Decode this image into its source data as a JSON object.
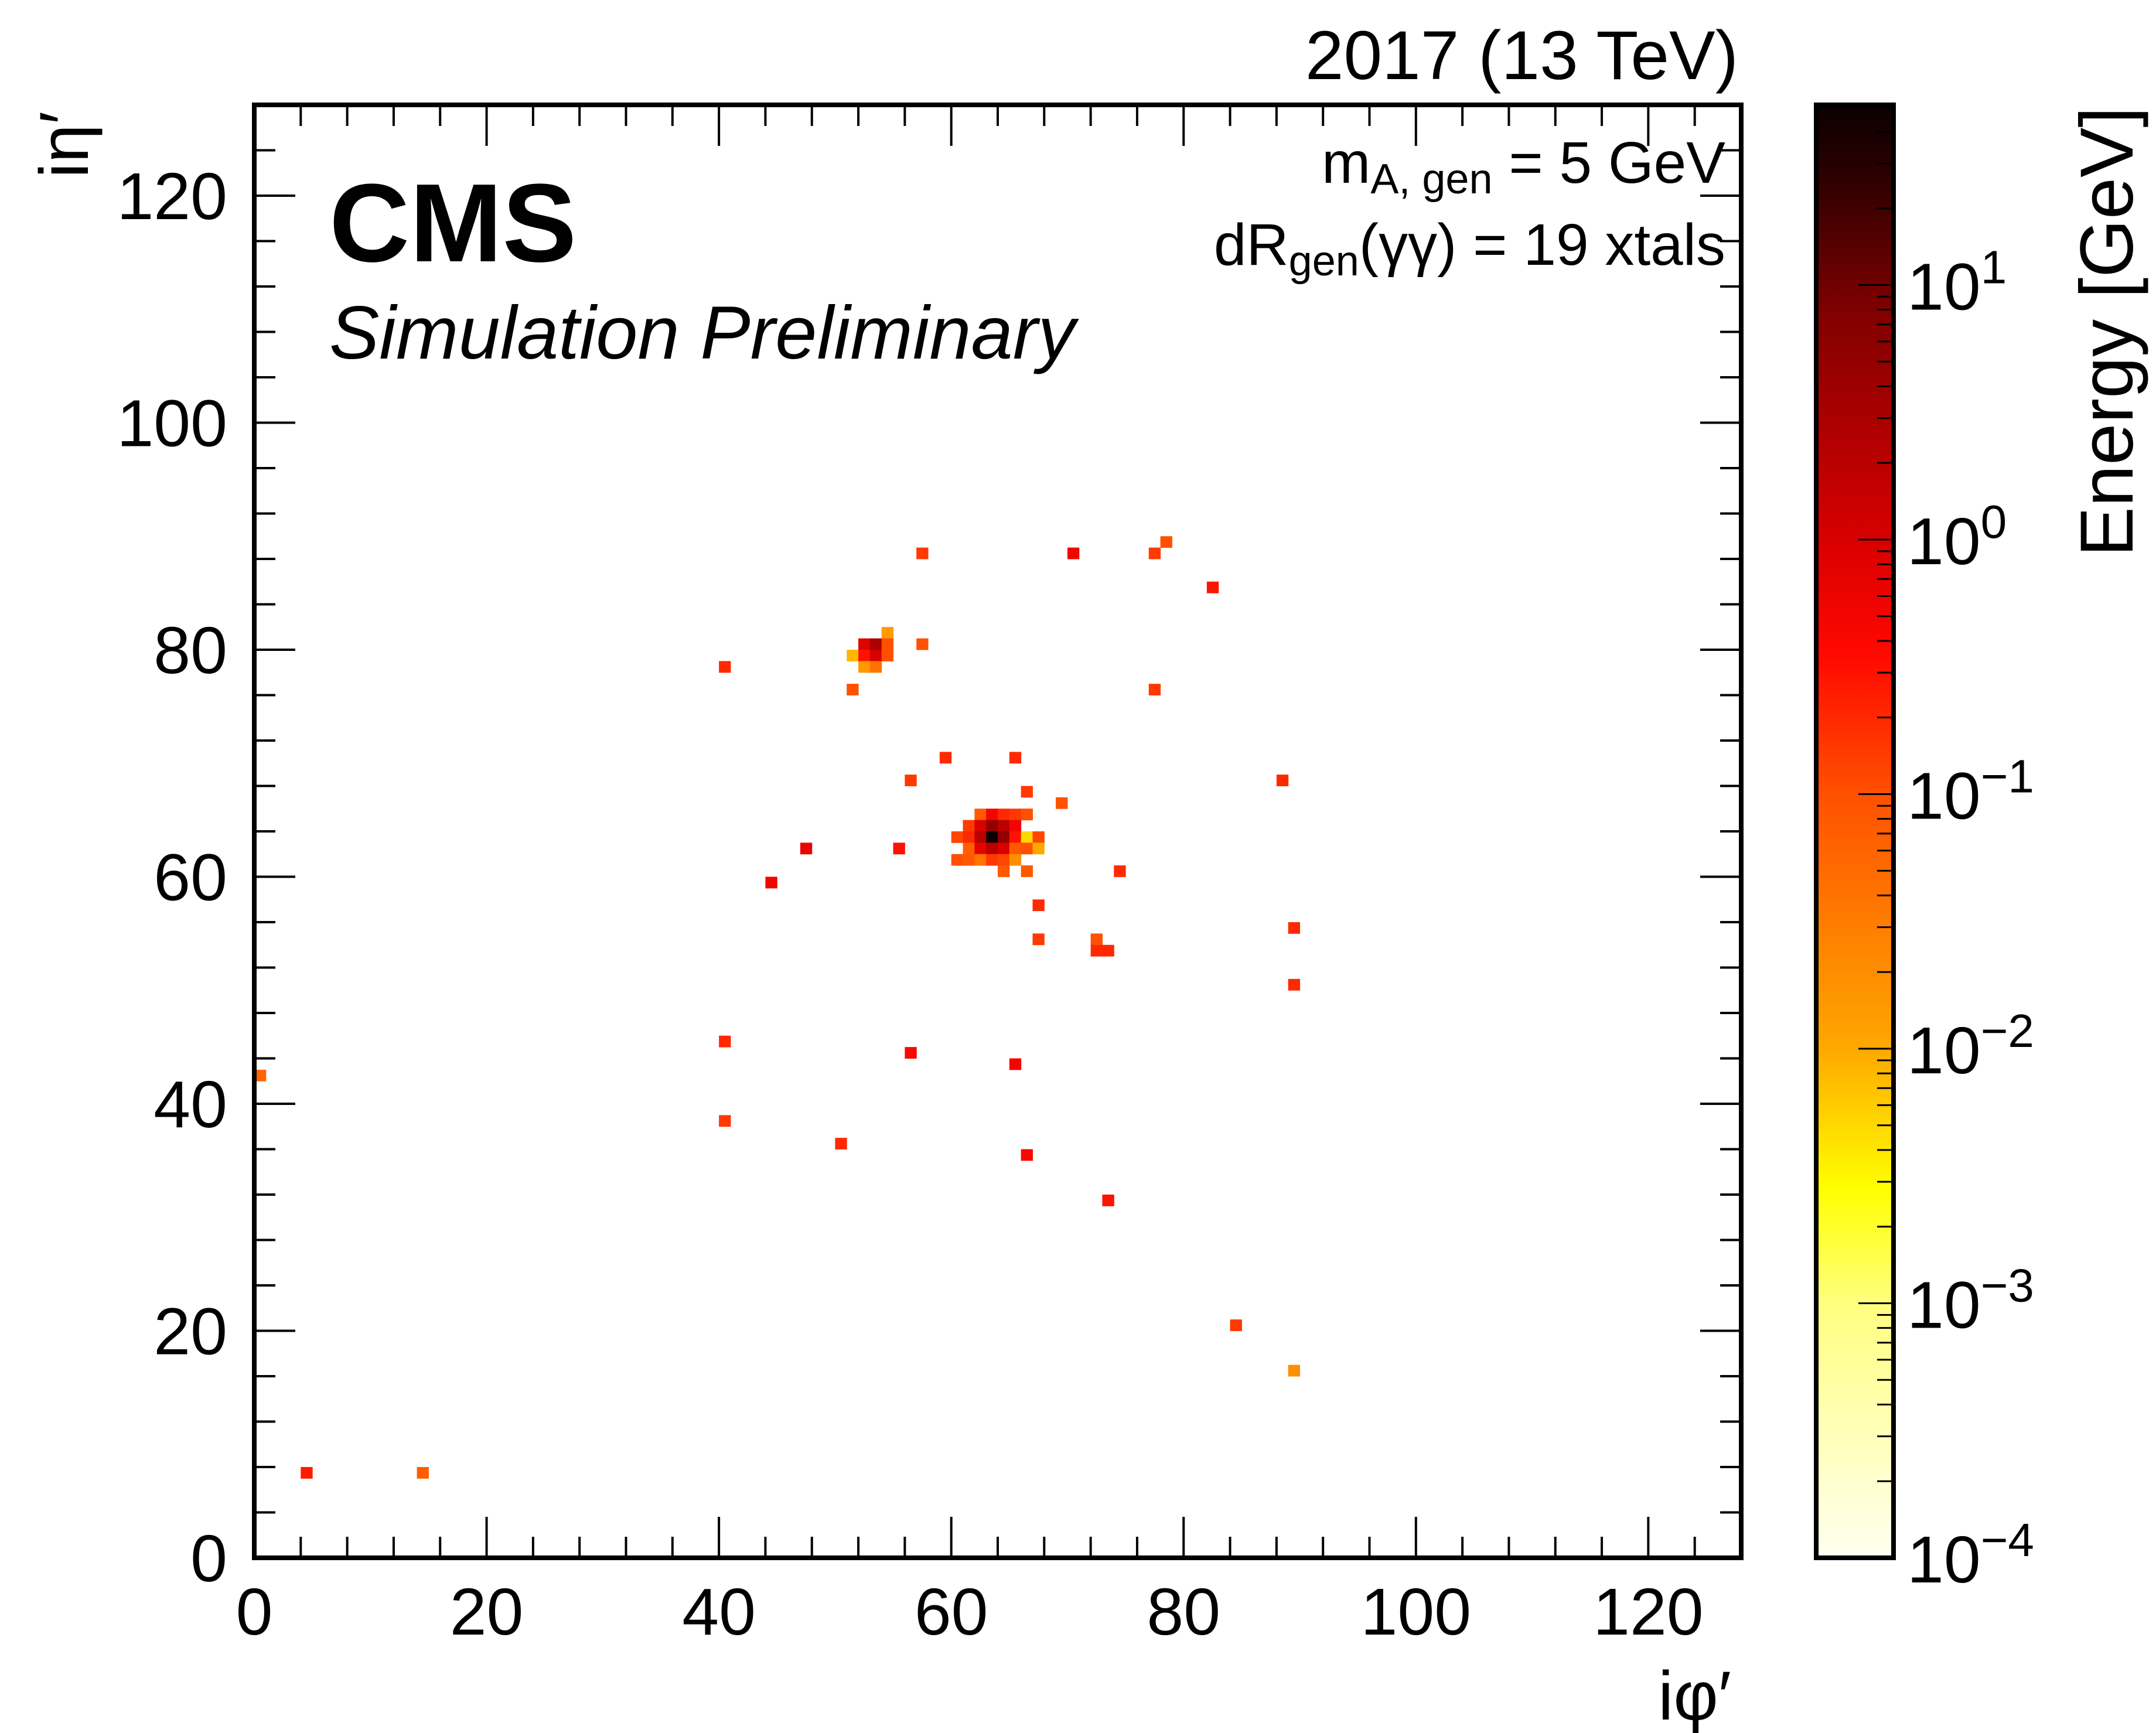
{
  "chart_data": {
    "type": "heatmap",
    "header_right": "2017 (13 TeV)",
    "experiment": "CMS",
    "subtitle": "Simulation Preliminary",
    "annotation_line1": "m_A,gen = 5 GeV",
    "annotation_line1_parts": {
      "base": "m",
      "sub": "A, gen",
      "rest": " = 5 GeV"
    },
    "annotation_line2": "dR_gen(γγ) = 19 xtals",
    "annotation_line2_parts": {
      "base": "dR",
      "sub": "gen",
      "rest": "(γγ) = 19 xtals"
    },
    "xlabel": "iφ′",
    "ylabel": "iη′",
    "zlabel": "Energy [GeV]",
    "xlim": [
      0,
      128
    ],
    "ylim": [
      0,
      128
    ],
    "zlim": [
      0.0001,
      51
    ],
    "zscale": "log",
    "xticks": [
      "0",
      "20",
      "40",
      "60",
      "80",
      "100",
      "120"
    ],
    "yticks": [
      "0",
      "20",
      "40",
      "60",
      "80",
      "100",
      "120"
    ],
    "zticks": [
      {
        "base": "10",
        "exp": "−4",
        "value": 0.0001
      },
      {
        "base": "10",
        "exp": "−3",
        "value": 0.001
      },
      {
        "base": "10",
        "exp": "−2",
        "value": 0.01
      },
      {
        "base": "10",
        "exp": "−1",
        "value": 0.1
      },
      {
        "base": "10",
        "exp": "0",
        "value": 1
      },
      {
        "base": "10",
        "exp": "1",
        "value": 10
      }
    ],
    "cells": [
      [
        62,
        65,
        0.08
      ],
      [
        63,
        65,
        0.5
      ],
      [
        64,
        65,
        0.2
      ],
      [
        65,
        65,
        0.15
      ],
      [
        66,
        65,
        0.05
      ],
      [
        61,
        64,
        0.15
      ],
      [
        62,
        64,
        1.0
      ],
      [
        63,
        64,
        5
      ],
      [
        64,
        64,
        2
      ],
      [
        65,
        64,
        0.5
      ],
      [
        60,
        63,
        0.12
      ],
      [
        61,
        63,
        0.2
      ],
      [
        62,
        63,
        2
      ],
      [
        63,
        63,
        45
      ],
      [
        64,
        63,
        5
      ],
      [
        65,
        63,
        0.3
      ],
      [
        66,
        63,
        0.005
      ],
      [
        67,
        63,
        0.12
      ],
      [
        61,
        62,
        0.07
      ],
      [
        62,
        62,
        0.7
      ],
      [
        63,
        62,
        2
      ],
      [
        64,
        62,
        1
      ],
      [
        65,
        62,
        0.08
      ],
      [
        66,
        62,
        0.1
      ],
      [
        67,
        62,
        0.01
      ],
      [
        60,
        61,
        0.1
      ],
      [
        61,
        61,
        0.08
      ],
      [
        62,
        61,
        0.04
      ],
      [
        63,
        61,
        0.15
      ],
      [
        64,
        61,
        0.12
      ],
      [
        65,
        61,
        0.02
      ],
      [
        64,
        60,
        0.08
      ],
      [
        66,
        60,
        0.08
      ],
      [
        66,
        65,
        0.1
      ],
      [
        54,
        81,
        0.015
      ],
      [
        52,
        80,
        0.8
      ],
      [
        53,
        80,
        3
      ],
      [
        54,
        80,
        0.1
      ],
      [
        51,
        79,
        0.008
      ],
      [
        52,
        79,
        0.3
      ],
      [
        53,
        79,
        1
      ],
      [
        54,
        79,
        0.1
      ],
      [
        52,
        78,
        0.015
      ],
      [
        53,
        78,
        0.04
      ],
      [
        57,
        80,
        0.1
      ],
      [
        51,
        76,
        0.1
      ],
      [
        57,
        88,
        0.15
      ],
      [
        70,
        88,
        0.5
      ],
      [
        77,
        88,
        0.15
      ],
      [
        78,
        89,
        0.1
      ],
      [
        82,
        85,
        0.3
      ],
      [
        40,
        78,
        0.2
      ],
      [
        77,
        76,
        0.15
      ],
      [
        59,
        70,
        0.2
      ],
      [
        65,
        70,
        0.2
      ],
      [
        56,
        68,
        0.15
      ],
      [
        66,
        67,
        0.15
      ],
      [
        69,
        66,
        0.1
      ],
      [
        88,
        68,
        0.2
      ],
      [
        47,
        62,
        0.6
      ],
      [
        55,
        62,
        0.3
      ],
      [
        44,
        59,
        0.5
      ],
      [
        74,
        60,
        0.2
      ],
      [
        67,
        57,
        0.2
      ],
      [
        89,
        55,
        0.2
      ],
      [
        67,
        54,
        0.15
      ],
      [
        72,
        54,
        0.1
      ],
      [
        72,
        53,
        0.2
      ],
      [
        73,
        53,
        0.2
      ],
      [
        89,
        50,
        0.2
      ],
      [
        40,
        45,
        0.2
      ],
      [
        56,
        44,
        0.4
      ],
      [
        65,
        43,
        0.5
      ],
      [
        0,
        42,
        0.06
      ],
      [
        40,
        38,
        0.15
      ],
      [
        50,
        36,
        0.2
      ],
      [
        66,
        35,
        0.4
      ],
      [
        73,
        31,
        0.3
      ],
      [
        84,
        20,
        0.15
      ],
      [
        89,
        16,
        0.02
      ],
      [
        4,
        7,
        0.25
      ],
      [
        14,
        7,
        0.07
      ]
    ],
    "colormap": [
      {
        "logz": -4.0,
        "color": "#fffff0"
      },
      {
        "logz": -3.0,
        "color": "#ffff80"
      },
      {
        "logz": -2.55,
        "color": "#ffff00"
      },
      {
        "logz": -2.0,
        "color": "#ffa800"
      },
      {
        "logz": -1.0,
        "color": "#ff5000"
      },
      {
        "logz": -0.45,
        "color": "#ff0800"
      },
      {
        "logz": 0.0,
        "color": "#d80000"
      },
      {
        "logz": 0.9,
        "color": "#800000"
      },
      {
        "logz": 1.4,
        "color": "#300000"
      },
      {
        "logz": 1.71,
        "color": "#0a0000"
      }
    ]
  }
}
